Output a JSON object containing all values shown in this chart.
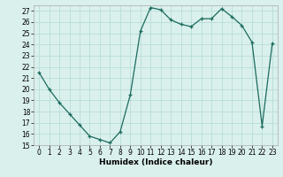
{
  "xlabel": "Humidex (Indice chaleur)",
  "x": [
    0,
    1,
    2,
    3,
    4,
    5,
    6,
    7,
    8,
    9,
    10,
    11,
    12,
    13,
    14,
    15,
    16,
    17,
    18,
    19,
    20,
    21,
    22,
    23
  ],
  "y": [
    21.5,
    20.0,
    18.8,
    17.8,
    16.8,
    15.8,
    15.5,
    15.2,
    16.2,
    19.5,
    25.2,
    27.3,
    27.1,
    26.2,
    25.8,
    25.6,
    26.3,
    26.3,
    27.2,
    26.5,
    25.7,
    24.2,
    16.7,
    24.1
  ],
  "line_color": "#1a6b5e",
  "marker": "+",
  "bg_color": "#daf0ec",
  "grid_color": "#b8ddd8",
  "ylim": [
    15,
    27.5
  ],
  "xlim": [
    -0.5,
    23.5
  ],
  "yticks": [
    15,
    16,
    17,
    18,
    19,
    20,
    21,
    22,
    23,
    24,
    25,
    26,
    27
  ],
  "xticks": [
    0,
    1,
    2,
    3,
    4,
    5,
    6,
    7,
    8,
    9,
    10,
    11,
    12,
    13,
    14,
    15,
    16,
    17,
    18,
    19,
    20,
    21,
    22,
    23
  ],
  "label_fontsize": 6.5,
  "tick_fontsize": 5.5,
  "marker_size": 3,
  "line_width": 0.9
}
